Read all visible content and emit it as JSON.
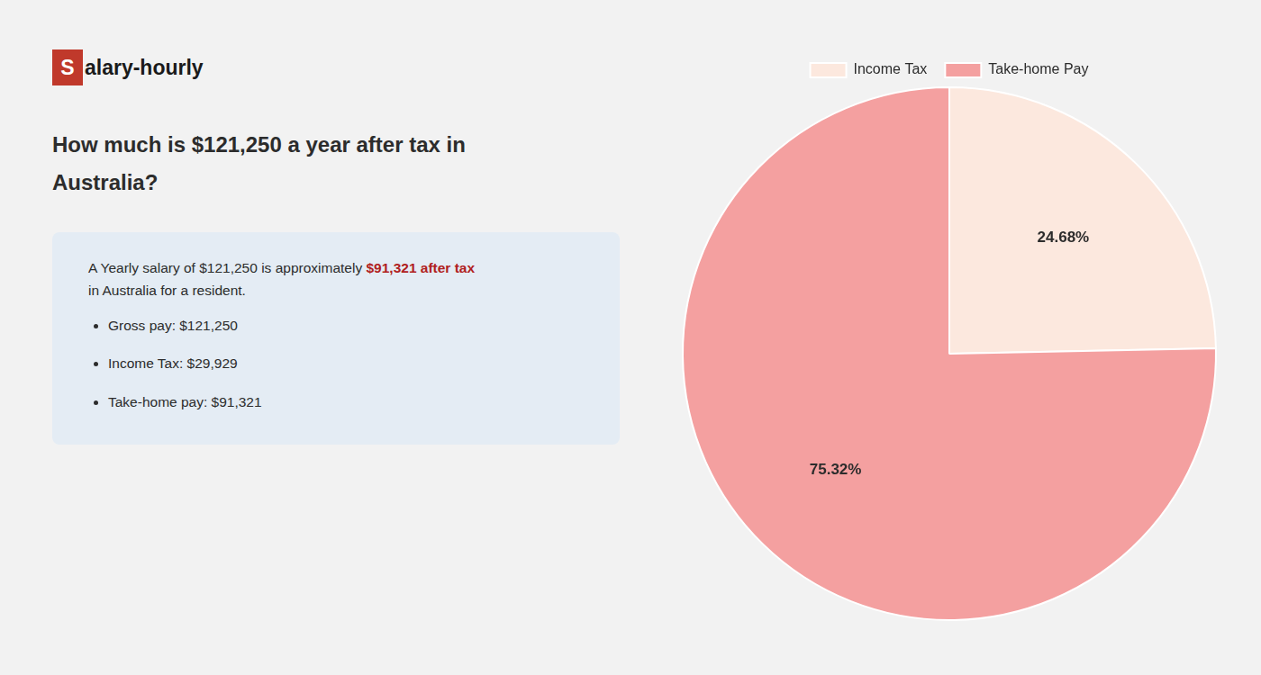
{
  "chart_data": {
    "type": "pie",
    "title": [
      "How much is $121,250 a year after tax in",
      "Australia?"
    ],
    "annotations": [
      "S",
      "alary-hourly",
      "A Yearly salary of $121,250 is approximately ",
      {
        "text": "$91,321 after tax",
        "color": "#b02020"
      },
      "in Australia for a resident.",
      "Gross pay: $121,250",
      "Income Tax: $29,929",
      "Take-home pay: $91,321"
    ],
    "categories": [
      "Income Tax",
      "Take-home Pay"
    ],
    "values": [
      24.68,
      75.32
    ],
    "value_labels": [
      "24.68%",
      "75.32%"
    ],
    "colors": [
      "#fce8de",
      "#f4a0a0"
    ],
    "data_labels": true,
    "legend": "top"
  }
}
